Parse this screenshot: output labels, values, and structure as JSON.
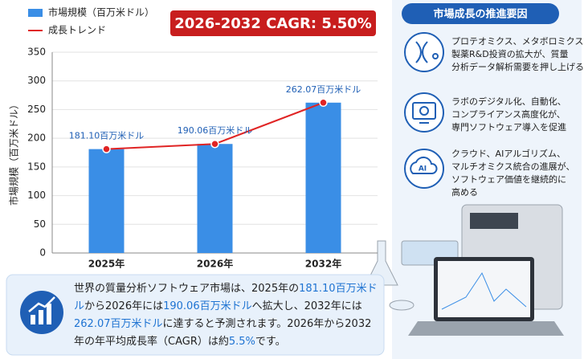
{
  "chart_data": {
    "type": "bar",
    "categories": [
      "2025年",
      "2026年",
      "2032年"
    ],
    "series": [
      {
        "name": "市場規模（百万米ドル）",
        "type": "bar",
        "color": "#3a8ee6",
        "values": [
          181.1,
          190.06,
          262.07
        ]
      },
      {
        "name": "成長トレンド",
        "type": "line",
        "color": "#e02424",
        "values": [
          181.1,
          190.06,
          262.07
        ],
        "value_labels": [
          "181.10百万米ドル",
          "190.06百万米ドル",
          "262.07百万米ドル"
        ]
      }
    ],
    "y_label": "市場規模（百万米ドル）",
    "ylim": [
      0,
      350
    ],
    "yticks": [
      0,
      50,
      100,
      150,
      200,
      250,
      300,
      350
    ],
    "grid": true
  },
  "badge": "2026-2032 CAGR: 5.50%",
  "drivers": {
    "title": "市場成長の推進要因",
    "items": [
      {
        "lines": [
          "プロテオミクス、メタボロミクス、",
          "製薬R&D投資の拡大が、質量",
          "分析データ解析需要を押し上げる"
        ]
      },
      {
        "lines": [
          "ラボのデジタル化、自動化、",
          "コンプライアンス高度化が、",
          "専門ソフトウェア導入を促進"
        ]
      },
      {
        "lines": [
          "クラウド、AIアルゴリズム、",
          "マルチオミクス統合の進展が、",
          "ソフトウェア価値を継続的に",
          "高める"
        ]
      }
    ]
  },
  "summary": {
    "parts": [
      {
        "text": "世界の質量分析ソフトウェア市場は、2025年の"
      },
      {
        "text": "181.10百万米ドル",
        "highlight": true
      },
      {
        "text": "から2026年には"
      },
      {
        "text": "190.06百万米ドル",
        "highlight": true
      },
      {
        "text": "へ拡大し、2032年には"
      },
      {
        "text": "262.07百万米ドル",
        "highlight": true
      },
      {
        "text": "に達すると予測されます。2026年から2032年の年平均成長率（CAGR）は約"
      },
      {
        "text": "5.5%",
        "highlight": true
      },
      {
        "text": "です。"
      }
    ]
  }
}
